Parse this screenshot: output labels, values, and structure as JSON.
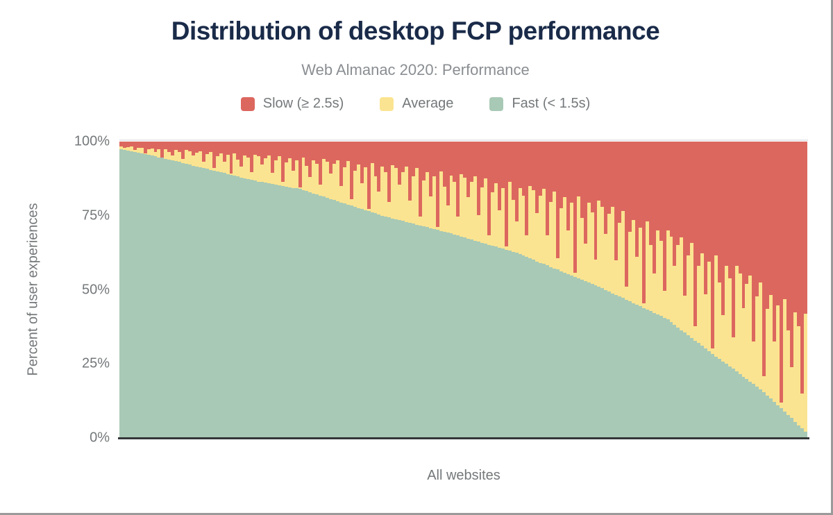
{
  "chart_data": {
    "type": "bar",
    "stacked": true,
    "stack_total_percent": 100,
    "title": "Distribution of desktop FCP performance",
    "subtitle": "Web Almanac 2020: Performance",
    "xlabel": "All websites",
    "ylabel": "Percent of user experiences",
    "y_ticks": [
      "100%",
      "75%",
      "50%",
      "25%",
      "0%"
    ],
    "ylim": [
      0,
      100
    ],
    "legend_position": "top",
    "n_bars": 200,
    "bar_order": "sorted by fast share, descending",
    "series": [
      {
        "name": "Slow (≥ 2.5s)",
        "color": "#dc675f",
        "stack_position": "top",
        "values": [
          1.6,
          2.0,
          1.8,
          1.7,
          2.8,
          2.2,
          2.0,
          4.0,
          2.6,
          2.3,
          3.5,
          2.6,
          5.3,
          2.5,
          3.4,
          4.7,
          2.9,
          3.4,
          5.9,
          2.9,
          3.2,
          4.8,
          3.7,
          3.2,
          6.7,
          4.2,
          3.5,
          8.9,
          4.9,
          4.0,
          6.8,
          4.5,
          10.8,
          4.0,
          6.0,
          8.5,
          4.6,
          5.5,
          10.3,
          4.4,
          5.0,
          7.8,
          5.6,
          4.7,
          10.5,
          6.3,
          5.0,
          13.5,
          7.1,
          5.7,
          9.9,
          6.4,
          15.5,
          5.5,
          8.3,
          11.9,
          6.3,
          7.6,
          14.5,
          5.9,
          6.7,
          10.8,
          7.6,
          6.3,
          14.9,
          8.7,
          6.6,
          19.4,
          9.8,
          7.7,
          14.1,
          8.7,
          22.7,
          7.3,
          11.6,
          16.9,
          8.5,
          10.3,
          20.3,
          7.9,
          8.9,
          14.6,
          10.2,
          8.5,
          19.9,
          11.6,
          8.9,
          25.4,
          13.1,
          10.3,
          18.4,
          11.6,
          28.8,
          10.0,
          15.2,
          21.5,
          11.4,
          13.7,
          25.4,
          10.9,
          12.1,
          18.7,
          13.6,
          11.6,
          24.9,
          15.4,
          12.3,
          31.5,
          17.2,
          14.0,
          23.3,
          15.6,
          35.4,
          13.7,
          19.7,
          27.0,
          15.6,
          18.2,
          31.7,
          15.0,
          16.5,
          24.2,
          18.3,
          16.0,
          31.6,
          20.4,
          16.8,
          39.3,
          22.5,
          18.8,
          29.9,
          20.7,
          44.2,
          18.5,
          25.7,
          34.5,
          20.7,
          23.8,
          39.9,
          20.0,
          22.0,
          31.2,
          24.4,
          22.0,
          40.0,
          27.4,
          23.5,
          49.0,
          30.4,
          26.5,
          38.8,
          29.0,
          54.6,
          27.0,
          34.9,
          44.4,
          30.0,
          33.5,
          50.4,
          30.0,
          32.1,
          41.9,
          34.9,
          32.4,
          51.9,
          38.4,
          34.2,
          62.3,
          41.9,
          37.6,
          51.5,
          40.6,
          69.9,
          38.4,
          47.6,
          58.6,
          41.9,
          46.1,
          66.1,
          42.0,
          44.6,
          56.1,
          48.0,
          45.2,
          67.5,
          52.2,
          47.6,
          79.2,
          56.5,
          51.8,
          67.5,
          55.3,
          88.0,
          53.2,
          63.6,
          76.0,
          57.5,
          62.3,
          84.9,
          58.0
        ]
      },
      {
        "name": "Average",
        "color": "#fbe491",
        "stack_position": "middle",
        "values": [
          0.9,
          0.8,
          1.2,
          1.6,
          0.7,
          1.6,
          2.0,
          0.3,
          1.9,
          2.5,
          1.5,
          2.7,
          0.2,
          3.3,
          2.7,
          1.7,
          3.7,
          3.5,
          1.3,
          4.6,
          4.6,
          3.3,
          4.7,
          5.4,
          2.2,
          5.0,
          6.0,
          0.9,
          5.2,
          6.4,
          3.8,
          6.4,
          0.4,
          7.5,
          5.8,
          3.6,
          7.8,
          7.1,
          2.6,
          8.8,
          8.5,
          5.9,
          8.3,
          9.4,
          3.8,
          8.2,
          9.7,
          1.5,
          8.1,
          9.7,
          5.7,
          9.4,
          0.5,
          10.9,
          8.4,
          5.2,
          11.2,
          10.3,
          3.7,
          12.7,
          12.3,
          8.6,
          12.1,
          13.8,
          5.6,
          12.2,
          14.6,
          2.2,
          12.2,
          14.7,
          8.6,
          14.4,
          0.8,
          16.6,
          12.6,
          7.7,
          16.5,
          15.0,
          5.3,
          18.0,
          17.3,
          11.9,
          16.6,
          18.6,
          7.5,
          16.1,
          19.1,
          2.9,
          15.5,
          18.6,
          10.8,
          17.9,
          1.0,
          20.1,
          15.2,
          9.2,
          19.6,
          17.6,
          6.3,
          21.1,
          20.3,
          14.0,
          19.5,
          21.8,
          8.8,
          18.7,
          22.1,
          3.3,
          17.9,
          21.4,
          12.5,
          20.5,
          1.1,
          23.1,
          17.5,
          10.5,
          22.4,
          20.3,
          7.2,
          24.4,
          23.4,
          16.2,
          22.6,
          25.3,
          10.2,
          21.9,
          26.0,
          3.9,
          21.2,
          25.4,
          14.8,
          24.5,
          1.4,
          27.6,
          20.9,
          12.6,
          26.9,
          24.2,
          8.6,
          29.0,
          27.5,
          18.9,
          26.2,
          29.2,
          11.7,
          24.9,
          29.3,
          4.4,
          23.5,
          28.0,
          16.2,
          26.6,
          1.5,
          29.7,
          22.3,
          13.4,
          28.3,
          25.4,
          9.0,
          30.0,
          28.8,
          19.9,
          27.8,
          31.2,
          12.6,
          27.0,
          32.0,
          4.8,
          26.1,
          31.3,
          18.3,
          30.1,
          1.7,
          34.1,
          25.7,
          15.6,
          33.1,
          29.8,
          10.6,
          35.6,
          33.8,
          23.2,
          32.1,
          35.8,
          14.3,
          30.5,
          35.9,
          5.4,
          29.1,
          34.9,
          20.3,
          33.6,
          1.9,
          37.8,
          28.6,
          17.3,
          37.0,
          33.4,
          11.9,
          40.0
        ]
      },
      {
        "name": "Fast (< 1.5s)",
        "color": "#a8c9b5",
        "stack_position": "bottom",
        "values": [
          97.5,
          97.2,
          97.0,
          96.7,
          96.5,
          96.2,
          96.0,
          95.7,
          95.5,
          95.2,
          95.0,
          94.7,
          94.5,
          94.2,
          93.9,
          93.6,
          93.4,
          93.1,
          92.8,
          92.5,
          92.2,
          91.9,
          91.6,
          91.4,
          91.1,
          90.8,
          90.5,
          90.2,
          89.9,
          89.6,
          89.4,
          89.1,
          88.8,
          88.5,
          88.2,
          87.9,
          87.6,
          87.4,
          87.1,
          86.8,
          86.5,
          86.3,
          86.1,
          85.9,
          85.7,
          85.5,
          85.3,
          85.0,
          84.8,
          84.6,
          84.4,
          84.2,
          84.0,
          83.6,
          83.3,
          82.9,
          82.5,
          82.1,
          81.8,
          81.4,
          81.0,
          80.6,
          80.3,
          79.9,
          79.5,
          79.1,
          78.8,
          78.4,
          78.0,
          77.6,
          77.3,
          76.9,
          76.5,
          76.1,
          75.8,
          75.4,
          75.0,
          74.7,
          74.4,
          74.1,
          73.8,
          73.5,
          73.2,
          72.9,
          72.6,
          72.3,
          72.0,
          71.7,
          71.4,
          71.1,
          70.8,
          70.5,
          70.2,
          69.9,
          69.6,
          69.3,
          69.0,
          68.7,
          68.3,
          68.0,
          67.6,
          67.3,
          66.9,
          66.6,
          66.3,
          65.9,
          65.6,
          65.2,
          64.9,
          64.6,
          64.2,
          63.9,
          63.5,
          63.2,
          62.8,
          62.5,
          62.0,
          61.5,
          61.1,
          60.6,
          60.1,
          59.6,
          59.1,
          58.7,
          58.2,
          57.7,
          57.2,
          56.8,
          56.3,
          55.8,
          55.3,
          54.8,
          54.4,
          53.9,
          53.4,
          52.9,
          52.4,
          52.0,
          51.5,
          51.0,
          50.5,
          49.9,
          49.4,
          48.8,
          48.3,
          47.7,
          47.2,
          46.6,
          46.1,
          45.5,
          45.0,
          44.4,
          43.9,
          43.3,
          42.8,
          42.2,
          41.7,
          41.1,
          40.6,
          40.0,
          39.1,
          38.2,
          37.3,
          36.4,
          35.5,
          34.6,
          33.8,
          32.9,
          32.0,
          31.1,
          30.2,
          29.3,
          28.4,
          27.5,
          26.7,
          25.8,
          25.0,
          24.1,
          23.3,
          22.4,
          21.6,
          20.7,
          19.9,
          19.0,
          18.2,
          17.3,
          16.5,
          15.4,
          14.4,
          13.3,
          12.2,
          11.1,
          10.1,
          9.0,
          7.8,
          6.7,
          5.5,
          4.3,
          3.2,
          2.0
        ]
      }
    ]
  },
  "colors": {
    "title": "#1a2b49",
    "axis_text": "#74787a",
    "subtitle_text": "#8a8e92",
    "axis_line": "#333639",
    "gridline": "#e6e6ea",
    "frame_edge": "#9a9a9a",
    "slow": "#dc675f",
    "average": "#fbe491",
    "fast": "#a8c9b5"
  }
}
